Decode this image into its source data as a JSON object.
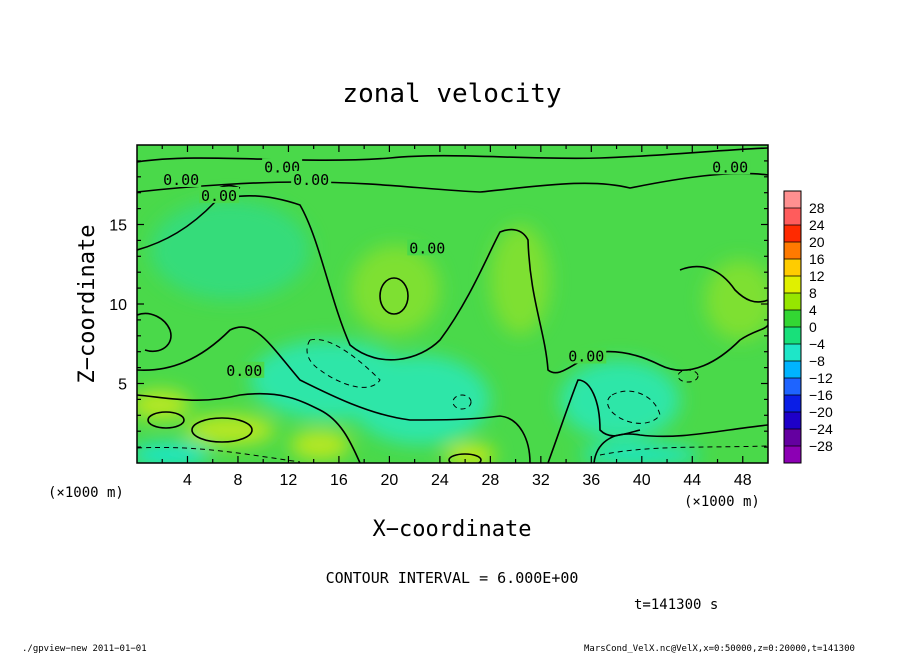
{
  "chart_data": {
    "type": "heatmap",
    "title": "zonal velocity",
    "xlabel": "X−coordinate",
    "ylabel": "Z−coordinate",
    "x_unit_left": "(×1000 m)",
    "x_unit_right": "(×1000 m)",
    "xlim": [
      0,
      50
    ],
    "ylim": [
      0,
      20
    ],
    "x_ticks": [
      4,
      8,
      12,
      16,
      20,
      24,
      28,
      32,
      36,
      40,
      44,
      48
    ],
    "y_ticks": [
      5,
      10,
      15
    ],
    "colorbar": {
      "levels": [
        "28",
        "24",
        "20",
        "16",
        "12",
        "8",
        "4",
        "0",
        "−4",
        "−8",
        "−12",
        "−16",
        "−20",
        "−24",
        "−28"
      ],
      "colors": [
        "#ff9090",
        "#ff5c5c",
        "#ff2a00",
        "#ff7a00",
        "#ffcc00",
        "#e0f000",
        "#96e600",
        "#33d633",
        "#18e07a",
        "#1ee6c8",
        "#00b4ff",
        "#1e64ff",
        "#0a1ee6",
        "#1e00c8",
        "#6400a0",
        "#8c00b4"
      ]
    },
    "contour_labels": [
      {
        "text": "0.00",
        "x": 11.5,
        "y": 18.6
      },
      {
        "text": "0.00",
        "x": 47.0,
        "y": 18.6
      },
      {
        "text": "0.00",
        "x": 3.5,
        "y": 17.8
      },
      {
        "text": "0.00",
        "x": 13.8,
        "y": 17.8
      },
      {
        "text": "0.00",
        "x": 6.5,
        "y": 16.8
      },
      {
        "text": "0.00",
        "x": 23.0,
        "y": 13.5
      },
      {
        "text": "0.00",
        "x": 8.5,
        "y": 5.8
      },
      {
        "text": "0.00",
        "x": 35.6,
        "y": 6.7
      }
    ],
    "contour_interval_text": "CONTOUR INTERVAL = 6.000E+00",
    "time_text": "t=141300 s"
  },
  "footer": {
    "left": "./gpview−new   2011−01−01",
    "right": "MarsCond_VelX.nc@VelX,x=0:50000,z=0:20000,t=141300"
  }
}
